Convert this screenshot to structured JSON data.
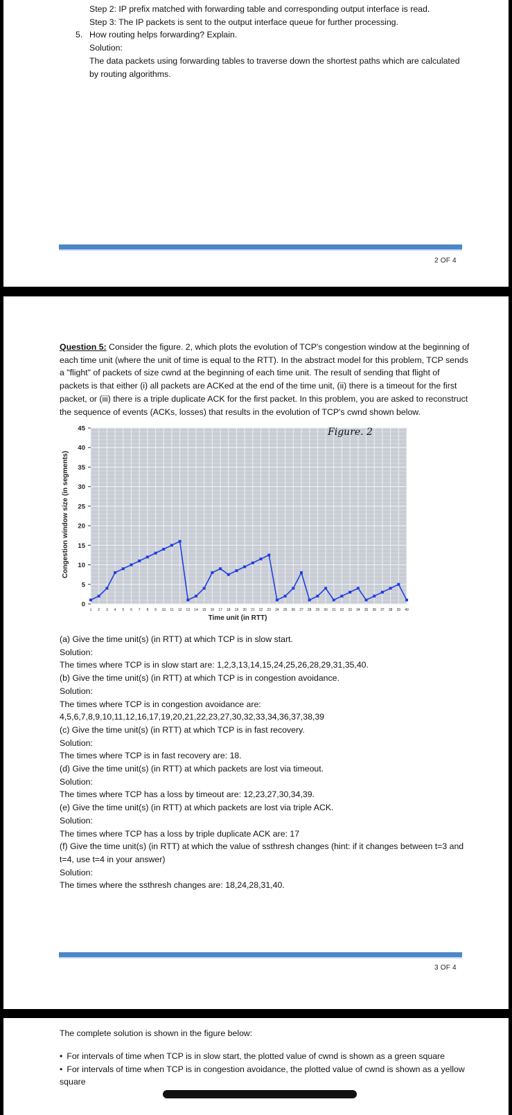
{
  "page1": {
    "lines": [
      "Step 2: IP prefix matched with forwarding table and corresponding output interface is read.",
      "Step 3: The IP packets is sent to the output interface queue for further processing.",
      "How routing helps forwarding? Explain.",
      "Solution:",
      "The data packets using forwarding tables to traverse down the shortest paths which are calculated",
      "by routing algorithms."
    ],
    "question_mark": "5.",
    "page_number": "2 OF 4"
  },
  "page2": {
    "question_label": "Question 5:",
    "question_lines": [
      " Consider the figure. 2, which plots the evolution of TCP's congestion window at the beginning of",
      "each time unit (where the unit of time is equal to the RTT). In the abstract model for this problem, TCP sends",
      "a \"flight\" of packets of size cwnd at the beginning of each time unit. The result of sending that flight of",
      "packets is that either (i) all packets are ACKed at the end of the time unit, (ii) there is a timeout for the first",
      "packet, or (iii) there is a triple duplicate ACK for the first packet. In this problem, you are asked to reconstruct",
      "the sequence of events (ACKs, losses) that results in the evolution of TCP's cwnd shown below."
    ],
    "answers": [
      "(a) Give the time unit(s) (in RTT) at which TCP is in slow start.",
      "Solution:",
      "The times where TCP is in slow start are: 1,2,3,13,14,15,24,25,26,28,29,31,35,40.",
      "(b) Give the time unit(s) (in RTT) at which TCP is in congestion avoidance.",
      "Solution:",
      "The times where TCP is in congestion avoidance are:",
      "4,5,6,7,8,9,10,11,12,16,17,19,20,21,22,23,27,30,32,33,34,36,37,38,39",
      "(c) Give the time unit(s) (in RTT) at which TCP is in fast recovery.",
      "Solution:",
      "The times where TCP is in fast recovery are: 18.",
      "(d) Give the time unit(s) (in RTT) at which packets are lost via timeout.",
      "Solution:",
      "The times where TCP has a loss by timeout are: 12,23,27,30,34,39.",
      "(e) Give the time unit(s) (in RTT) at which packets are lost via triple ACK.",
      "Solution:",
      "The times where TCP has a loss by triple duplicate ACK are: 17",
      "(f) Give the time unit(s) (in RTT) at which the value of ssthresh changes (hint: if it changes between t=3 and",
      "t=4, use t=4 in your answer)",
      "Solution:",
      "The times where the ssthresh changes are: 18,24,28,31,40."
    ],
    "page_number": "3 OF 4"
  },
  "page3": {
    "intro": "The complete solution is shown in the figure below:",
    "bullets": [
      "For intervals of time when TCP is in slow start, the plotted value of cwnd is shown as a green square",
      "For intervals of time when TCP is in congestion avoidance, the plotted value of cwnd is shown as a yellow"
    ],
    "bullet_cont": "square"
  },
  "chart_data": {
    "type": "line",
    "title": "Figure. 2",
    "xlabel": "Time unit (in RTT)",
    "ylabel": "Congestion window size (in segments)",
    "xlim": [
      1,
      40
    ],
    "ylim": [
      0,
      45
    ],
    "yticks": [
      0,
      5,
      10,
      15,
      20,
      25,
      30,
      35,
      40,
      45
    ],
    "xticks": [
      1,
      2,
      3,
      4,
      5,
      6,
      7,
      8,
      9,
      10,
      11,
      12,
      13,
      14,
      15,
      16,
      17,
      18,
      19,
      20,
      21,
      22,
      23,
      24,
      25,
      26,
      27,
      28,
      29,
      30,
      31,
      32,
      33,
      34,
      35,
      36,
      37,
      38,
      39,
      40
    ],
    "grid": true,
    "series_color": "#1f3fe0",
    "plot_bg": "#c8ccd4",
    "x": [
      1,
      2,
      3,
      4,
      5,
      6,
      7,
      8,
      9,
      10,
      11,
      12,
      13,
      14,
      15,
      16,
      17,
      18,
      19,
      20,
      21,
      22,
      23,
      24,
      25,
      26,
      27,
      28,
      29,
      30,
      31,
      32,
      33,
      34,
      35,
      36,
      37,
      38,
      39,
      40
    ],
    "values": [
      1,
      2,
      4,
      8,
      9,
      10,
      11,
      12,
      13,
      14,
      15,
      16,
      1,
      2,
      4,
      8,
      9,
      7.5,
      8.5,
      9.5,
      10.5,
      11.5,
      12.5,
      1,
      2,
      4,
      8,
      1,
      2,
      4,
      1,
      2,
      3,
      4,
      1,
      2,
      3,
      4,
      5,
      1
    ]
  }
}
